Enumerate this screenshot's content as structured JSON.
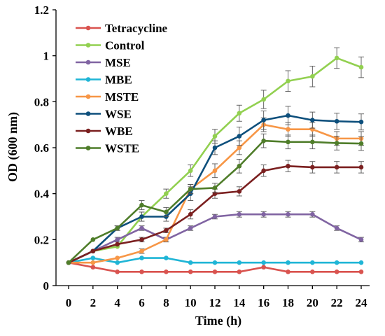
{
  "chart_data": {
    "type": "line",
    "title": "",
    "xlabel": "Time (h)",
    "ylabel": "OD (600 nm)",
    "x": [
      0,
      2,
      4,
      6,
      8,
      10,
      12,
      14,
      16,
      18,
      20,
      22,
      24
    ],
    "xlim": [
      0,
      24
    ],
    "ylim": [
      0,
      1.2
    ],
    "xticks": [
      "0",
      "2",
      "4",
      "6",
      "8",
      "10",
      "12",
      "14",
      "16",
      "18",
      "20",
      "22",
      "24"
    ],
    "yticks": [
      "0",
      "0.2",
      "0.4",
      "0.6",
      "0.8",
      "1",
      "1.2"
    ],
    "grid": false,
    "legend_position": "top-left",
    "series": [
      {
        "name": "Tetracycline",
        "color": "#d9534f",
        "values": [
          0.1,
          0.08,
          0.06,
          0.06,
          0.06,
          0.06,
          0.06,
          0.06,
          0.08,
          0.06,
          0.06,
          0.06,
          0.06
        ],
        "errors": [
          0,
          0,
          0,
          0,
          0,
          0,
          0,
          0,
          0,
          0,
          0,
          0,
          0
        ]
      },
      {
        "name": "Control",
        "color": "#92d050",
        "values": [
          0.1,
          0.15,
          0.17,
          0.3,
          0.4,
          0.5,
          0.65,
          0.75,
          0.81,
          0.89,
          0.91,
          0.99,
          0.95
        ],
        "errors": [
          0,
          0,
          0,
          0.02,
          0.02,
          0.025,
          0.03,
          0.035,
          0.04,
          0.045,
          0.045,
          0.045,
          0.045
        ]
      },
      {
        "name": "MSE",
        "color": "#8064a2",
        "values": [
          0.1,
          0.15,
          0.2,
          0.25,
          0.2,
          0.25,
          0.3,
          0.31,
          0.31,
          0.31,
          0.31,
          0.25,
          0.2
        ],
        "errors": [
          0,
          0,
          0.01,
          0.01,
          0.01,
          0.01,
          0.01,
          0.012,
          0.012,
          0.012,
          0.012,
          0.01,
          0.01
        ]
      },
      {
        "name": "MBE",
        "color": "#1fb5d6",
        "values": [
          0.1,
          0.12,
          0.1,
          0.12,
          0.12,
          0.1,
          0.1,
          0.1,
          0.1,
          0.1,
          0.1,
          0.1,
          0.1
        ],
        "errors": [
          0,
          0,
          0,
          0,
          0,
          0,
          0,
          0,
          0,
          0,
          0,
          0,
          0
        ]
      },
      {
        "name": "MSTE",
        "color": "#f79646",
        "values": [
          0.1,
          0.1,
          0.12,
          0.15,
          0.2,
          0.42,
          0.5,
          0.6,
          0.7,
          0.68,
          0.68,
          0.64,
          0.64
        ],
        "errors": [
          0,
          0,
          0,
          0.01,
          0.01,
          0.02,
          0.03,
          0.03,
          0.03,
          0.03,
          0.03,
          0.03,
          0.03
        ]
      },
      {
        "name": "WSE",
        "color": "#0d4f7c",
        "values": [
          0.1,
          0.15,
          0.25,
          0.3,
          0.3,
          0.4,
          0.6,
          0.65,
          0.72,
          0.74,
          0.72,
          0.715,
          0.712
        ],
        "errors": [
          0,
          0,
          0.01,
          0.02,
          0.02,
          0.03,
          0.03,
          0.04,
          0.04,
          0.04,
          0.035,
          0.035,
          0.035
        ]
      },
      {
        "name": "WBE",
        "color": "#7b2020",
        "values": [
          0.1,
          0.15,
          0.18,
          0.2,
          0.24,
          0.31,
          0.4,
          0.41,
          0.5,
          0.52,
          0.515,
          0.515,
          0.515
        ],
        "errors": [
          0,
          0,
          0,
          0.01,
          0.01,
          0.02,
          0.02,
          0.02,
          0.025,
          0.025,
          0.025,
          0.025,
          0.025
        ]
      },
      {
        "name": "WSTE",
        "color": "#4f7d2a",
        "values": [
          0.1,
          0.2,
          0.25,
          0.35,
          0.32,
          0.42,
          0.425,
          0.52,
          0.63,
          0.625,
          0.625,
          0.62,
          0.618
        ],
        "errors": [
          0,
          0,
          0.01,
          0.02,
          0.02,
          0.02,
          0.02,
          0.03,
          0.03,
          0.03,
          0.03,
          0.03,
          0.03
        ]
      }
    ]
  }
}
